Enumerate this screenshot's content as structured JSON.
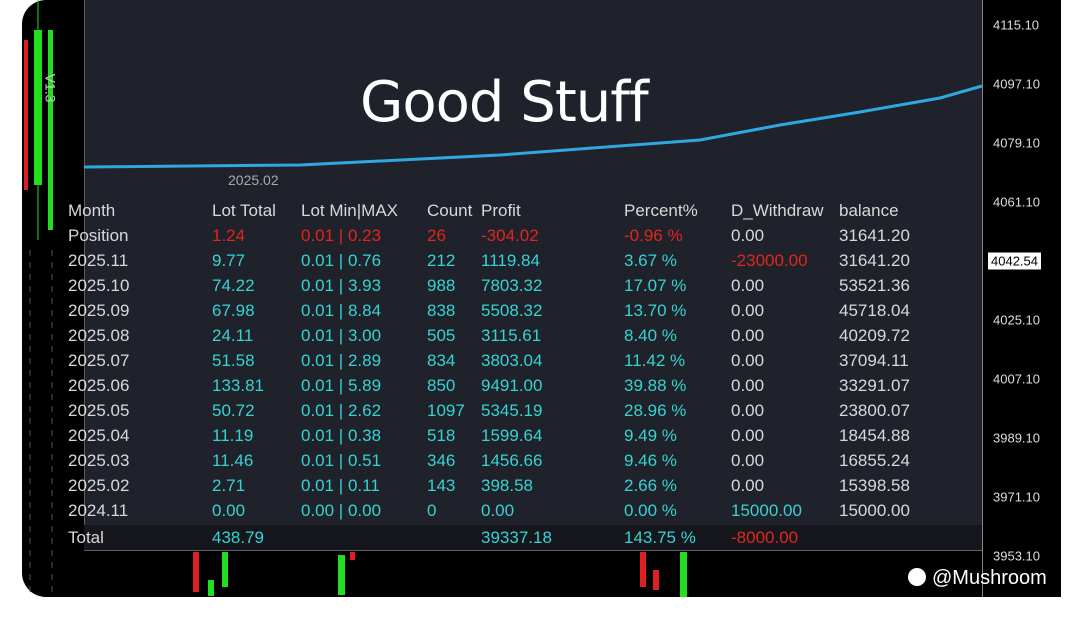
{
  "overlay_title": "Good Stuff",
  "version_label": "V1.3",
  "chart_date_label": "2025.02",
  "price_axis": [
    "4115.10",
    "4097.10",
    "4079.10",
    "4061.10",
    "4042.54",
    "4025.10",
    "4007.10",
    "3989.10",
    "3971.10",
    "3953.10"
  ],
  "current_price_index": 4,
  "table": {
    "columns": [
      "Month",
      "Lot Total",
      "Lot Min|MAX",
      "Count",
      "Profit",
      "Percent%",
      "D_Withdraw",
      "balance"
    ],
    "rows": [
      [
        "Position",
        "1.24",
        "0.01 | 0.23",
        "26",
        "-304.02",
        "-0.96 %",
        "0.00",
        "31641.20"
      ],
      [
        "2025.11",
        "9.77",
        "0.01 | 0.76",
        "212",
        "1119.84",
        "3.67 %",
        "-23000.00",
        "31641.20"
      ],
      [
        "2025.10",
        "74.22",
        "0.01 | 3.93",
        "988",
        "7803.32",
        "17.07 %",
        "0.00",
        "53521.36"
      ],
      [
        "2025.09",
        "67.98",
        "0.01 | 8.84",
        "838",
        "5508.32",
        "13.70 %",
        "0.00",
        "45718.04"
      ],
      [
        "2025.08",
        "24.11",
        "0.01 | 3.00",
        "505",
        "3115.61",
        "8.40 %",
        "0.00",
        "40209.72"
      ],
      [
        "2025.07",
        "51.58",
        "0.01 | 2.89",
        "834",
        "3803.04",
        "11.42 %",
        "0.00",
        "37094.11"
      ],
      [
        "2025.06",
        "133.81",
        "0.01 | 5.89",
        "850",
        "9491.00",
        "39.88 %",
        "0.00",
        "33291.07"
      ],
      [
        "2025.05",
        "50.72",
        "0.01 | 2.62",
        "1097",
        "5345.19",
        "28.96 %",
        "0.00",
        "23800.07"
      ],
      [
        "2025.04",
        "11.19",
        "0.01 | 0.38",
        "518",
        "1599.64",
        "9.49 %",
        "0.00",
        "18454.88"
      ],
      [
        "2025.03",
        "11.46",
        "0.01 | 0.51",
        "346",
        "1456.66",
        "9.46 %",
        "0.00",
        "16855.24"
      ],
      [
        "2025.02",
        "2.71",
        "0.01 | 0.11",
        "143",
        "398.58",
        "2.66 %",
        "0.00",
        "15398.58"
      ],
      [
        "2024.11",
        "0.00",
        "0.00 | 0.00",
        "0",
        "0.00",
        "0.00 %",
        "15000.00",
        "15000.00"
      ]
    ],
    "total": [
      "Total",
      "438.79",
      "39337.18",
      "143.75 %",
      "-8000.00"
    ]
  },
  "watermark": "@Mushroom"
}
